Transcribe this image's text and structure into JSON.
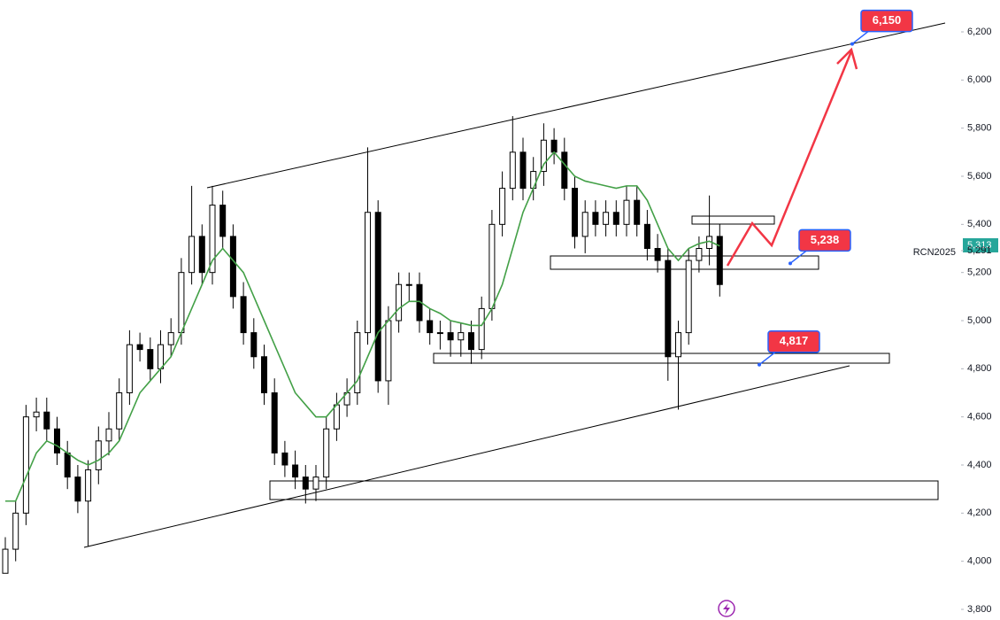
{
  "chart_data": {
    "type": "candlestick",
    "symbol": "RCN2025",
    "up_color": "#ffffff",
    "down_color": "#000000",
    "ma_color": "#43a047",
    "open": [
      3950,
      4050,
      4200,
      4600,
      4620,
      4550,
      4450,
      4350,
      4250,
      4380,
      4500,
      4550,
      4700,
      4900,
      4880,
      4800,
      4900,
      4950,
      5200,
      5350,
      5200,
      5480,
      5350,
      5100,
      4950,
      4850,
      4700,
      4450,
      4400,
      4350,
      4300,
      4350,
      4550,
      4650,
      4700,
      4950,
      5450,
      4750,
      5000,
      5150,
      5150,
      5000,
      4950,
      4950,
      4920,
      4950,
      4880,
      5050,
      5400,
      5550,
      5700,
      5550,
      5620,
      5750,
      5700,
      5550,
      5350,
      5450,
      5400,
      5450,
      5400,
      5500,
      5400,
      5300,
      5250,
      4850,
      4950,
      5250,
      5300,
      5350
    ],
    "high": [
      4100,
      4250,
      4650,
      4680,
      4680,
      4600,
      4500,
      4400,
      4420,
      4560,
      4620,
      4760,
      4960,
      4950,
      4930,
      4960,
      5010,
      5260,
      5560,
      5400,
      5560,
      5540,
      5400,
      5160,
      5010,
      4900,
      4760,
      4500,
      4460,
      4400,
      4400,
      4600,
      4700,
      4760,
      5000,
      5720,
      5500,
      5060,
      5200,
      5200,
      5200,
      5050,
      5000,
      5000,
      4990,
      5000,
      5100,
      5460,
      5620,
      5850,
      5760,
      5680,
      5820,
      5800,
      5760,
      5600,
      5500,
      5500,
      5500,
      5500,
      5560,
      5560,
      5460,
      5360,
      5300,
      5000,
      5300,
      5350,
      5520,
      5400
    ],
    "low": [
      3950,
      4000,
      4150,
      4540,
      4500,
      4400,
      4300,
      4200,
      4060,
      4320,
      4440,
      4500,
      4650,
      4830,
      4750,
      4740,
      4850,
      4900,
      5150,
      5150,
      5150,
      5300,
      5050,
      4900,
      4800,
      4650,
      4400,
      4350,
      4300,
      4240,
      4250,
      4300,
      4500,
      4600,
      4650,
      4900,
      4700,
      4650,
      4950,
      5080,
      4950,
      4900,
      4880,
      4850,
      4850,
      4820,
      4840,
      5000,
      5350,
      5500,
      5500,
      5500,
      5560,
      5650,
      5500,
      5300,
      5280,
      5350,
      5350,
      5350,
      5350,
      5350,
      5250,
      5200,
      4750,
      4630,
      4900,
      5200,
      5230,
      5100
    ],
    "close": [
      4050,
      4200,
      4600,
      4620,
      4550,
      4450,
      4350,
      4250,
      4380,
      4500,
      4550,
      4700,
      4900,
      4880,
      4800,
      4900,
      4950,
      5200,
      5350,
      5200,
      5480,
      5350,
      5100,
      4950,
      4850,
      4700,
      4450,
      4400,
      4350,
      4300,
      4350,
      4550,
      4650,
      4700,
      4950,
      5450,
      4750,
      5000,
      5150,
      5150,
      5000,
      4950,
      4950,
      4920,
      4950,
      4880,
      5050,
      5400,
      5550,
      5700,
      5550,
      5620,
      5750,
      5700,
      5550,
      5350,
      5450,
      5400,
      5450,
      5400,
      5500,
      5400,
      5300,
      5250,
      4850,
      4950,
      5250,
      5300,
      5350,
      5150
    ],
    "ma": [
      4250,
      4250,
      4350,
      4450,
      4500,
      4480,
      4450,
      4420,
      4400,
      4420,
      4450,
      4500,
      4600,
      4700,
      4750,
      4800,
      4850,
      4950,
      5050,
      5150,
      5250,
      5300,
      5250,
      5200,
      5100,
      5000,
      4900,
      4800,
      4700,
      4650,
      4600,
      4600,
      4650,
      4700,
      4750,
      4850,
      4950,
      5000,
      5050,
      5080,
      5080,
      5050,
      5030,
      5000,
      4990,
      4980,
      4980,
      5050,
      5150,
      5300,
      5450,
      5550,
      5650,
      5700,
      5650,
      5600,
      5580,
      5570,
      5560,
      5550,
      5560,
      5560,
      5500,
      5400,
      5300,
      5250,
      5300,
      5320,
      5330,
      5310
    ],
    "ylim": [
      3800,
      6200
    ],
    "yticks": [
      {
        "value": 3800,
        "label": "3,800"
      },
      {
        "value": 4000,
        "label": "4,000"
      },
      {
        "value": 4200,
        "label": "4,200"
      },
      {
        "value": 4400,
        "label": "4,400"
      },
      {
        "value": 4600,
        "label": "4,600"
      },
      {
        "value": 4800,
        "label": "4,800"
      },
      {
        "value": 5000,
        "label": "5,000"
      },
      {
        "value": 5200,
        "label": "5,200"
      },
      {
        "value": 5400,
        "label": "5,400"
      },
      {
        "value": 5600,
        "label": "5,600"
      },
      {
        "value": 5800,
        "label": "5,800"
      },
      {
        "value": 6000,
        "label": "6,000"
      },
      {
        "value": 6200,
        "label": "6,200"
      }
    ],
    "last_price": {
      "value": 5313,
      "label": "5,313"
    },
    "reference_price": {
      "value": 5291,
      "label": "5,291"
    },
    "annotations": [
      {
        "value": 6150,
        "label": "6,150"
      },
      {
        "value": 5238,
        "label": "5,238"
      },
      {
        "value": 4817,
        "label": "4,817"
      }
    ]
  }
}
